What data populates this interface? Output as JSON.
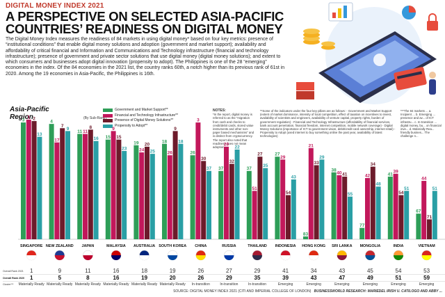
{
  "header": {
    "kicker": "DIGITAL MONEY INDEX 2021",
    "title": "A PERSPECTIVE ON SELECTED ASIA-PACIFIC COUNTRIES’ READINESS ON DIGITAL MONEY",
    "intro": "The Digital Money Index measures the readiness of 84 markets in using digital money* based on four key metrics: presence of “institutional conditions” that enable digital money solutions and adoption (government and market support); availability and affordability of critical financial and Information and Communications and Technology infrastructure (financial and technology infrastructure); presence of government and private sector solutions that use digital money (digital money solutions); and extent to which consumers and businesses adopt digital innovation (propensity to adopt). The Philippines is one of the 28 “emerging” economies in the index. Of the 84 economies in the 2021 list, the country ranks 60th, a notch higher than its previous rank of 61st in 2020. Among the 19 economies in Asia-Pacific, the Philippines is 16th."
  },
  "region_label": "Asia-Pacific Region",
  "by_subrank": "(By Sub-Rank):",
  "notes": {
    "title": "NOTES:",
    "n1": "*In the report, digital money is referred to as the “migration from cash and checks to credit/debit cards, stored value instruments and other non-paper based mechanisms” and is distinct from cryptocurrency. The report also noted that readiness does not mean adoption.",
    "n2": "**Some of the indicators under the four key pillars are as follows: - Government and Market Support (extent of market dominance, intensity of local competition, effect of taxation on incentives to invest, availability of scientists and engineers, availability of venture capital, property rights, burden of government regulation) - Financial and Technology Infrastructure (affordability of financial services, bank account penetration, financial freedom, internet competition, mobile network coverage) - Digital Money Solutions (importance of ICT to government vision, debit/credit card ownership, internet retail) - Propensity to Adopt (used internet to buy something online the past year, availability of latest technologies)",
    "n3": "***The 84 markets ... a. Incipient ... b. Emerging ... presence and av... of ICT infrastru... c. In-transition ... digital money, bu... on financial inve... d. Materially Rea... friendly busines... The challenge n..."
  },
  "illustration": {
    "phone_icon": "smartphone-icon",
    "coins_icon": "coins-icon",
    "chart_icon": "chart-icon",
    "padlock_icon": "padlock-icon",
    "card_icon": "credit-card-icon"
  },
  "row_labels": {
    "overall_2021": "Overall Rank 2021",
    "overall_2020": "Overall Rank 2020",
    "cluster": "Cluster***"
  },
  "source": "SOURCE: DIGITAL MONEY INDEX 2021 (CITI AND IMPERIAL COLLEGE OF LONDON)",
  "research": "BUSINESSWORLD RESEARCH: MARIEDEL IRISH U. CATILOGO AND ABBY ...",
  "chart_data": {
    "type": "bar",
    "series": [
      {
        "name": "Government and Market Support**",
        "color": "#2e9e58"
      },
      {
        "name": "Financial and Technology Infrastructure**",
        "color": "#c2185b"
      },
      {
        "name": "Presence of Digital Money Solutions**",
        "color": "#6d1b2b"
      },
      {
        "name": "Propensity to Adopt**",
        "color": "#2a9fa5"
      }
    ],
    "max_rank": 84,
    "countries": [
      {
        "name": "SINGAPORE",
        "flag": [
          "#e1251b",
          "#ffffff"
        ],
        "values": [
          3,
          1,
          2,
          13
        ],
        "rank2021": "1",
        "rank2020": "1",
        "cluster": "Materially Ready"
      },
      {
        "name": "NEW ZEALAND",
        "flag": [
          "#1f3a93",
          "#c8102e"
        ],
        "values": [
          4,
          17,
          7,
          9
        ],
        "rank2021": "9",
        "rank2020": "5",
        "cluster": "Materially Ready"
      },
      {
        "name": "JAPAN",
        "flag": [
          "#ffffff",
          "#bc002d"
        ],
        "values": [
          11,
          11,
          8,
          16
        ],
        "rank2021": "11",
        "rank2020": "8",
        "cluster": "Materially Ready"
      },
      {
        "name": "MALAYSIA",
        "flag": [
          "#cc0001",
          "#010066"
        ],
        "values": [
          15,
          9,
          15,
          23
        ],
        "rank2021": "16",
        "rank2020": "16",
        "cluster": "Materially Ready"
      },
      {
        "name": "AUSTRALIA",
        "flag": [
          "#00247d",
          "#ffffff"
        ],
        "values": [
          19,
          24,
          20,
          25
        ],
        "rank2021": "18",
        "rank2020": "19",
        "cluster": "Materially Ready"
      },
      {
        "name": "SOUTH KOREA",
        "flag": [
          "#ffffff",
          "#0047a0"
        ],
        "values": [
          18,
          26,
          9,
          18
        ],
        "rank2021": "19",
        "rank2020": "20",
        "cluster": "Materially Ready"
      },
      {
        "name": "CHINA",
        "flag": [
          "#de2910",
          "#ffde00"
        ],
        "values": [
          26,
          3,
          30,
          37
        ],
        "rank2021": "26",
        "rank2020": "26",
        "cluster": "In-transition"
      },
      {
        "name": "RUSSIA",
        "flag": [
          "#ffffff",
          "#0039a6"
        ],
        "values": [
          37,
          20,
          32,
          22
        ],
        "rank2021": "27",
        "rank2020": "29",
        "cluster": "In-transition"
      },
      {
        "name": "THAILAND",
        "flag": [
          "#a51931",
          "#2d2a4a"
        ],
        "values": [
          37,
          51,
          27,
          35
        ],
        "rank2021": "29",
        "rank2020": "35",
        "cluster": "In-transition"
      },
      {
        "name": "INDONESIA",
        "flag": [
          "#ce1126",
          "#ffffff"
        ],
        "values": [
          27,
          29,
          54,
          43
        ],
        "rank2021": "41",
        "rank2020": "39",
        "cluster": "Emerging"
      },
      {
        "name": "HONG KONG",
        "flag": [
          "#de2910",
          "#ffffff"
        ],
        "values": [
          83,
          21,
          33,
          29
        ],
        "rank2021": "34",
        "rank2020": "43",
        "cluster": "Emerging"
      },
      {
        "name": "SRI LANKA",
        "flag": [
          "#ffb700",
          "#8d153a"
        ],
        "values": [
          38,
          40,
          41,
          55
        ],
        "rank2021": "43",
        "rank2020": "47",
        "cluster": "Emerging"
      },
      {
        "name": "MONGOLIA",
        "flag": [
          "#c4272f",
          "#015197"
        ],
        "values": [
          77,
          42,
          34,
          48
        ],
        "rank2021": "45",
        "rank2020": "49",
        "cluster": "Emerging"
      },
      {
        "name": "INDIA",
        "flag": [
          "#ff9933",
          "#138808"
        ],
        "values": [
          41,
          39,
          54,
          51
        ],
        "rank2021": "54",
        "rank2020": "51",
        "cluster": "Emerging"
      },
      {
        "name": "VIETNAM",
        "flag": [
          "#da251d",
          "#ffff00"
        ],
        "values": [
          67,
          44,
          71,
          51
        ],
        "rank2021": "53",
        "rank2020": "59",
        "cluster": "Emerging"
      }
    ]
  }
}
